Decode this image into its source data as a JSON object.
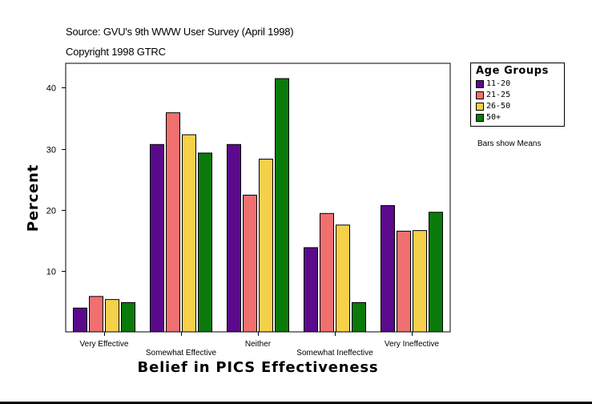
{
  "source_line": "Source: GVU's 9th WWW User Survey (April 1998)",
  "copyright_line": "Copyright 1998 GTRC",
  "note": "Bars show Means",
  "chart_data": {
    "type": "bar",
    "title": "",
    "xlabel": "Belief in PICS Effectiveness",
    "ylabel": "Percent",
    "ylim": [
      0,
      44
    ],
    "yticks": [
      10,
      20,
      30,
      40
    ],
    "categories": [
      "Very Effective",
      "Somewhat Effective",
      "Neither",
      "Somewhat Ineffective",
      "Very Ineffective"
    ],
    "legend_title": "Age Groups",
    "legend_position": "right",
    "series": [
      {
        "name": "11-20",
        "color": "#5c0a8c",
        "values": [
          3.9,
          30.7,
          30.7,
          13.8,
          20.7
        ]
      },
      {
        "name": "21-25",
        "color": "#f07070",
        "values": [
          5.8,
          35.9,
          22.4,
          19.4,
          16.5
        ]
      },
      {
        "name": "26-50",
        "color": "#f5d04a",
        "values": [
          5.3,
          32.3,
          28.3,
          17.5,
          16.6
        ]
      },
      {
        "name": "50+",
        "color": "#0a7a0a",
        "values": [
          4.8,
          29.3,
          41.5,
          4.8,
          19.6
        ]
      }
    ]
  }
}
